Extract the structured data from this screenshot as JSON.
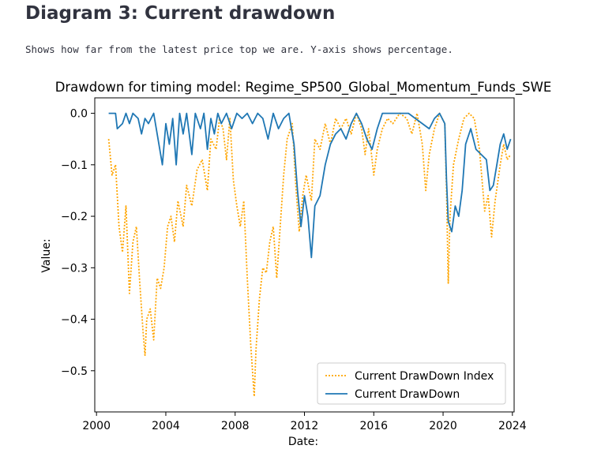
{
  "page": {
    "heading": "Diagram 3: Current drawdown",
    "caption": "Shows how far from the latest price top we are. Y-axis shows percentage."
  },
  "chart_data": {
    "type": "line",
    "title": "Drawdown for timing model: Regime_SP500_Global_Momentum_Funds_SWE",
    "xlabel": "Date:",
    "ylabel": "Value:",
    "xlim": [
      1999.9,
      2024.1
    ],
    "ylim": [
      -0.58,
      0.03
    ],
    "xticks": [
      2000,
      2004,
      2008,
      2012,
      2016,
      2020,
      2024
    ],
    "yticks": [
      0.0,
      -0.1,
      -0.2,
      -0.3,
      -0.4,
      -0.5
    ],
    "ytick_labels": [
      "0.0",
      "−0.1",
      "−0.2",
      "−0.3",
      "−0.4",
      "−0.5"
    ],
    "grid": false,
    "legend_position": "lower-right",
    "series": [
      {
        "name": "Current DrawDown Index",
        "color": "#ffa500",
        "style": "dotted",
        "points": [
          [
            2000.7,
            -0.05
          ],
          [
            2000.9,
            -0.12
          ],
          [
            2001.1,
            -0.1
          ],
          [
            2001.3,
            -0.22
          ],
          [
            2001.5,
            -0.27
          ],
          [
            2001.7,
            -0.18
          ],
          [
            2001.9,
            -0.35
          ],
          [
            2002.1,
            -0.25
          ],
          [
            2002.3,
            -0.22
          ],
          [
            2002.5,
            -0.33
          ],
          [
            2002.7,
            -0.43
          ],
          [
            2002.8,
            -0.47
          ],
          [
            2002.9,
            -0.4
          ],
          [
            2003.1,
            -0.38
          ],
          [
            2003.3,
            -0.44
          ],
          [
            2003.5,
            -0.32
          ],
          [
            2003.7,
            -0.34
          ],
          [
            2003.9,
            -0.3
          ],
          [
            2004.1,
            -0.22
          ],
          [
            2004.3,
            -0.2
          ],
          [
            2004.5,
            -0.25
          ],
          [
            2004.7,
            -0.17
          ],
          [
            2005.0,
            -0.22
          ],
          [
            2005.2,
            -0.14
          ],
          [
            2005.5,
            -0.18
          ],
          [
            2005.8,
            -0.11
          ],
          [
            2006.1,
            -0.09
          ],
          [
            2006.4,
            -0.15
          ],
          [
            2006.6,
            -0.05
          ],
          [
            2006.9,
            -0.07
          ],
          [
            2007.1,
            -0.01
          ],
          [
            2007.3,
            -0.03
          ],
          [
            2007.5,
            -0.09
          ],
          [
            2007.7,
            -0.01
          ],
          [
            2007.9,
            -0.13
          ],
          [
            2008.1,
            -0.18
          ],
          [
            2008.3,
            -0.22
          ],
          [
            2008.5,
            -0.17
          ],
          [
            2008.7,
            -0.32
          ],
          [
            2008.9,
            -0.45
          ],
          [
            2009.1,
            -0.55
          ],
          [
            2009.2,
            -0.46
          ],
          [
            2009.4,
            -0.36
          ],
          [
            2009.6,
            -0.3
          ],
          [
            2009.8,
            -0.31
          ],
          [
            2010.0,
            -0.25
          ],
          [
            2010.2,
            -0.22
          ],
          [
            2010.4,
            -0.32
          ],
          [
            2010.6,
            -0.22
          ],
          [
            2010.8,
            -0.12
          ],
          [
            2011.0,
            -0.05
          ],
          [
            2011.3,
            -0.02
          ],
          [
            2011.5,
            -0.14
          ],
          [
            2011.7,
            -0.23
          ],
          [
            2011.9,
            -0.16
          ],
          [
            2012.1,
            -0.12
          ],
          [
            2012.4,
            -0.17
          ],
          [
            2012.6,
            -0.05
          ],
          [
            2012.9,
            -0.07
          ],
          [
            2013.2,
            -0.02
          ],
          [
            2013.5,
            -0.06
          ],
          [
            2013.8,
            -0.01
          ],
          [
            2014.1,
            -0.03
          ],
          [
            2014.4,
            -0.01
          ],
          [
            2014.7,
            -0.04
          ],
          [
            2015.0,
            -0.0
          ],
          [
            2015.3,
            -0.03
          ],
          [
            2015.5,
            -0.08
          ],
          [
            2015.7,
            -0.03
          ],
          [
            2016.0,
            -0.12
          ],
          [
            2016.2,
            -0.07
          ],
          [
            2016.5,
            -0.03
          ],
          [
            2016.8,
            -0.01
          ],
          [
            2017.1,
            -0.02
          ],
          [
            2017.5,
            -0.0
          ],
          [
            2017.9,
            -0.01
          ],
          [
            2018.2,
            -0.04
          ],
          [
            2018.5,
            -0.0
          ],
          [
            2018.8,
            -0.06
          ],
          [
            2019.0,
            -0.15
          ],
          [
            2019.2,
            -0.08
          ],
          [
            2019.5,
            -0.03
          ],
          [
            2019.8,
            -0.0
          ],
          [
            2020.1,
            -0.02
          ],
          [
            2020.2,
            -0.15
          ],
          [
            2020.3,
            -0.33
          ],
          [
            2020.4,
            -0.2
          ],
          [
            2020.6,
            -0.1
          ],
          [
            2020.9,
            -0.05
          ],
          [
            2021.2,
            -0.01
          ],
          [
            2021.5,
            -0.0
          ],
          [
            2021.8,
            -0.01
          ],
          [
            2022.1,
            -0.07
          ],
          [
            2022.4,
            -0.19
          ],
          [
            2022.6,
            -0.16
          ],
          [
            2022.8,
            -0.24
          ],
          [
            2023.0,
            -0.17
          ],
          [
            2023.3,
            -0.1
          ],
          [
            2023.5,
            -0.06
          ],
          [
            2023.7,
            -0.09
          ],
          [
            2023.9,
            -0.08
          ]
        ]
      },
      {
        "name": "Current DrawDown",
        "color": "#1f77b4",
        "style": "solid",
        "points": [
          [
            2000.7,
            0.0
          ],
          [
            2001.1,
            0.0
          ],
          [
            2001.2,
            -0.03
          ],
          [
            2001.5,
            -0.02
          ],
          [
            2001.7,
            0.0
          ],
          [
            2001.9,
            -0.02
          ],
          [
            2002.1,
            0.0
          ],
          [
            2002.4,
            -0.01
          ],
          [
            2002.6,
            -0.04
          ],
          [
            2002.8,
            -0.01
          ],
          [
            2003.0,
            -0.02
          ],
          [
            2003.3,
            0.0
          ],
          [
            2003.6,
            -0.06
          ],
          [
            2003.8,
            -0.1
          ],
          [
            2004.0,
            -0.02
          ],
          [
            2004.2,
            -0.06
          ],
          [
            2004.4,
            -0.01
          ],
          [
            2004.6,
            -0.1
          ],
          [
            2004.8,
            0.0
          ],
          [
            2005.0,
            -0.04
          ],
          [
            2005.2,
            0.0
          ],
          [
            2005.5,
            -0.08
          ],
          [
            2005.7,
            0.0
          ],
          [
            2006.0,
            -0.03
          ],
          [
            2006.2,
            0.0
          ],
          [
            2006.4,
            -0.07
          ],
          [
            2006.6,
            -0.01
          ],
          [
            2006.8,
            -0.04
          ],
          [
            2007.0,
            0.0
          ],
          [
            2007.2,
            -0.02
          ],
          [
            2007.5,
            0.0
          ],
          [
            2007.8,
            -0.03
          ],
          [
            2008.1,
            0.0
          ],
          [
            2008.4,
            -0.01
          ],
          [
            2008.7,
            0.0
          ],
          [
            2009.0,
            -0.02
          ],
          [
            2009.3,
            0.0
          ],
          [
            2009.6,
            -0.01
          ],
          [
            2009.9,
            -0.05
          ],
          [
            2010.2,
            0.0
          ],
          [
            2010.5,
            -0.03
          ],
          [
            2010.8,
            -0.01
          ],
          [
            2011.1,
            0.0
          ],
          [
            2011.4,
            -0.06
          ],
          [
            2011.6,
            -0.15
          ],
          [
            2011.8,
            -0.22
          ],
          [
            2012.0,
            -0.16
          ],
          [
            2012.2,
            -0.2
          ],
          [
            2012.4,
            -0.28
          ],
          [
            2012.6,
            -0.18
          ],
          [
            2012.9,
            -0.16
          ],
          [
            2013.2,
            -0.1
          ],
          [
            2013.5,
            -0.06
          ],
          [
            2013.8,
            -0.04
          ],
          [
            2014.1,
            -0.03
          ],
          [
            2014.4,
            -0.05
          ],
          [
            2014.7,
            -0.02
          ],
          [
            2015.0,
            0.0
          ],
          [
            2015.3,
            -0.02
          ],
          [
            2015.6,
            -0.05
          ],
          [
            2015.9,
            -0.07
          ],
          [
            2016.2,
            -0.03
          ],
          [
            2016.5,
            0.0
          ],
          [
            2016.8,
            0.0
          ],
          [
            2017.2,
            0.0
          ],
          [
            2017.6,
            0.0
          ],
          [
            2018.0,
            0.0
          ],
          [
            2018.4,
            -0.01
          ],
          [
            2018.8,
            -0.02
          ],
          [
            2019.2,
            -0.03
          ],
          [
            2019.5,
            -0.01
          ],
          [
            2019.8,
            0.0
          ],
          [
            2020.1,
            -0.02
          ],
          [
            2020.2,
            -0.13
          ],
          [
            2020.3,
            -0.21
          ],
          [
            2020.5,
            -0.23
          ],
          [
            2020.7,
            -0.18
          ],
          [
            2020.9,
            -0.2
          ],
          [
            2021.1,
            -0.15
          ],
          [
            2021.3,
            -0.06
          ],
          [
            2021.6,
            -0.03
          ],
          [
            2021.9,
            -0.07
          ],
          [
            2022.2,
            -0.08
          ],
          [
            2022.5,
            -0.09
          ],
          [
            2022.7,
            -0.15
          ],
          [
            2022.9,
            -0.14
          ],
          [
            2023.1,
            -0.1
          ],
          [
            2023.3,
            -0.06
          ],
          [
            2023.5,
            -0.04
          ],
          [
            2023.7,
            -0.07
          ],
          [
            2023.9,
            -0.05
          ]
        ]
      }
    ]
  }
}
